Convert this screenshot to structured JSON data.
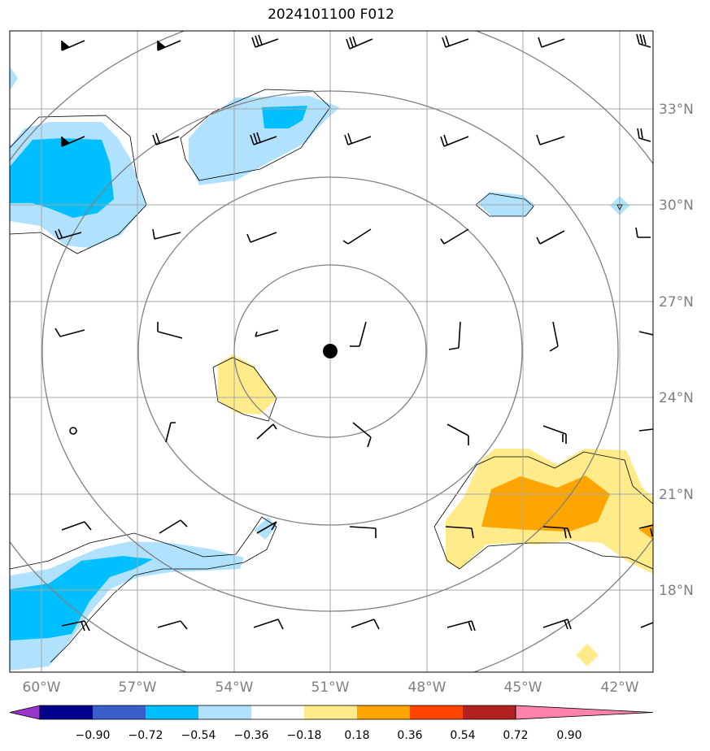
{
  "title": "2024101100 F012",
  "axes": {
    "lon_labels": [
      "60°W",
      "57°W",
      "54°W",
      "51°W",
      "48°W",
      "45°W",
      "42°W"
    ],
    "lon_values": [
      -60,
      -57,
      -54,
      -51,
      -48,
      -45,
      -42
    ],
    "lat_labels": [
      "33°N",
      "30°N",
      "27°N",
      "24°N",
      "21°N",
      "18°N"
    ],
    "lat_values": [
      33,
      30,
      27,
      24,
      21,
      18
    ],
    "lon_range": [
      -61,
      -41
    ],
    "lat_range": [
      15,
      35
    ]
  },
  "center": {
    "lon": -51,
    "lat": 25.5
  },
  "colorbar": {
    "levels": [
      "−0.90",
      "−0.72",
      "−0.54",
      "−0.36",
      "−0.18",
      "0.18",
      "0.36",
      "0.54",
      "0.72",
      "0.90"
    ],
    "colors": [
      "#9933cc",
      "#00008b",
      "#3a5fcd",
      "#00bfff",
      "#b0e2ff",
      "#ffffff",
      "#ffeb8a",
      "#ffa500",
      "#ff4500",
      "#b22222",
      "#ff82ab"
    ]
  },
  "colors": {
    "ring": "#808080",
    "grid": "#a6a6a6",
    "contour": "#000000"
  }
}
